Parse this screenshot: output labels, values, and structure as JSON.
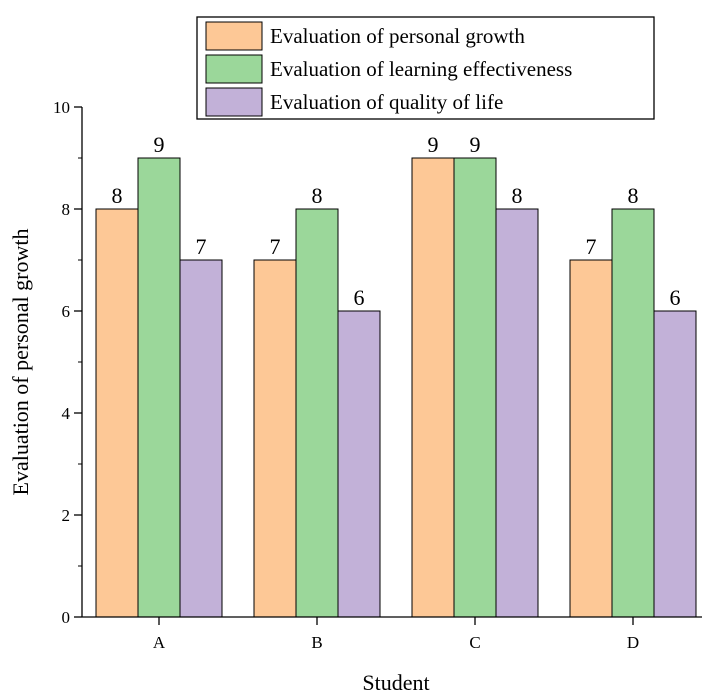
{
  "chart_data": {
    "type": "bar",
    "categories": [
      "A",
      "B",
      "C",
      "D"
    ],
    "series": [
      {
        "name": "Evaluation of personal growth",
        "values": [
          8,
          7,
          9,
          7
        ],
        "color": "#FDC896"
      },
      {
        "name": "Evaluation of learning effectiveness",
        "values": [
          9,
          8,
          9,
          8
        ],
        "color": "#9BD79A"
      },
      {
        "name": "Evaluation of quality of life",
        "values": [
          7,
          6,
          8,
          6
        ],
        "color": "#C2B1D8"
      }
    ],
    "xlabel": "Student",
    "ylabel": "Evaluation of personal growth",
    "ylim": [
      0,
      10
    ],
    "yticks": [
      0,
      2,
      4,
      6,
      8,
      10
    ],
    "grid": false,
    "legend_position": "top-right",
    "data_labels": true
  }
}
